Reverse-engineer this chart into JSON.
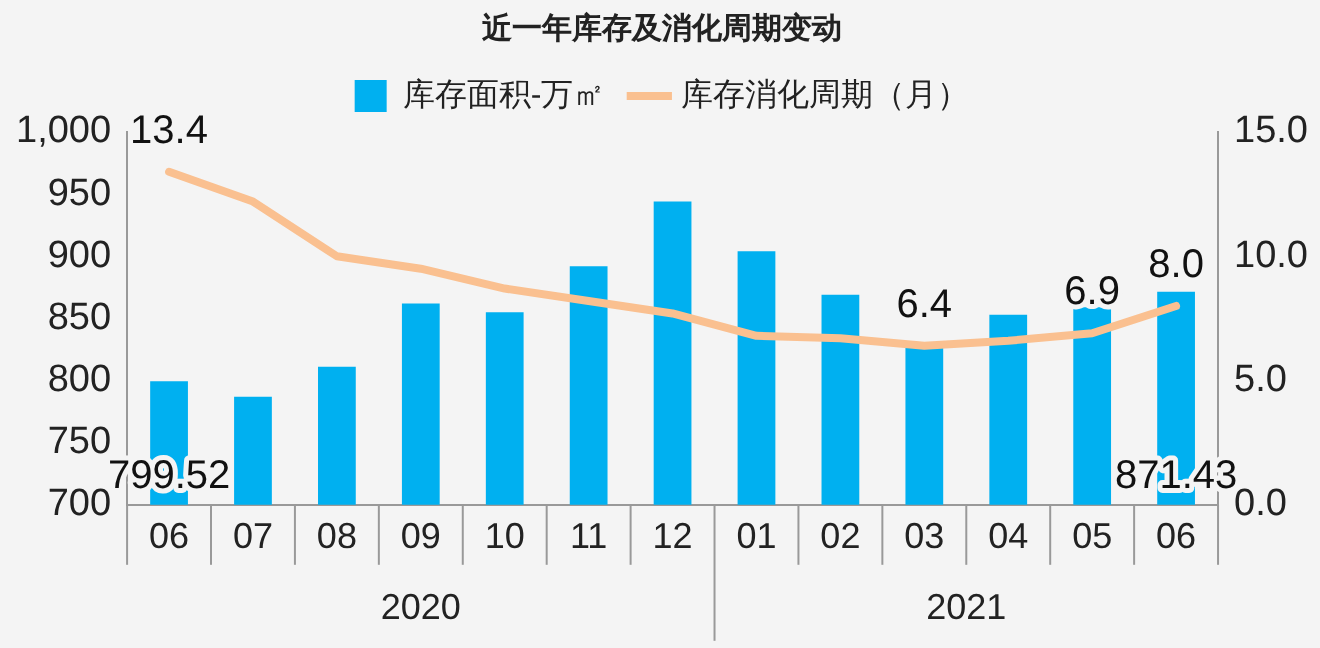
{
  "chart_data": {
    "type": "bar",
    "title": "近一年库存及消化周期变动",
    "categories": [
      "06",
      "07",
      "08",
      "09",
      "10",
      "11",
      "12",
      "01",
      "02",
      "03",
      "04",
      "05",
      "06"
    ],
    "series": [
      {
        "name": "库存面积-万㎡",
        "color": "#00b0f0",
        "values": [
          799.52,
          787,
          811,
          862,
          855,
          892,
          944,
          904,
          869,
          827,
          853,
          859,
          871.43
        ],
        "value_labels": [
          "799.52",
          null,
          null,
          null,
          null,
          null,
          null,
          null,
          null,
          null,
          null,
          null,
          "871.43"
        ]
      },
      {
        "name": "库存消化周期（月）",
        "type": "line",
        "axis": "y2",
        "color": "#fac090",
        "values": [
          13.4,
          12.2,
          10.0,
          9.5,
          8.7,
          8.2,
          7.7,
          6.8,
          6.7,
          6.4,
          6.6,
          6.9,
          8.0
        ],
        "value_labels": [
          "13.4",
          null,
          null,
          null,
          null,
          null,
          null,
          null,
          null,
          "6.4",
          null,
          "6.9",
          "8.0"
        ]
      }
    ],
    "ylim": [
      700,
      1000
    ],
    "yticks": [
      700,
      750,
      800,
      850,
      900,
      950,
      {
        "value": 1000,
        "label": "1,000"
      }
    ],
    "y2lim": [
      0,
      15
    ],
    "y2ticks": [
      {
        "value": 0,
        "label": "0.0"
      },
      {
        "value": 5,
        "label": "5.0"
      },
      {
        "value": 10,
        "label": "10.0"
      },
      {
        "value": 15,
        "label": "15.0"
      }
    ],
    "annotations": [
      "2020",
      "2021"
    ],
    "grid": false,
    "legend": "top",
    "marker": "none",
    "line_style": "solid"
  }
}
